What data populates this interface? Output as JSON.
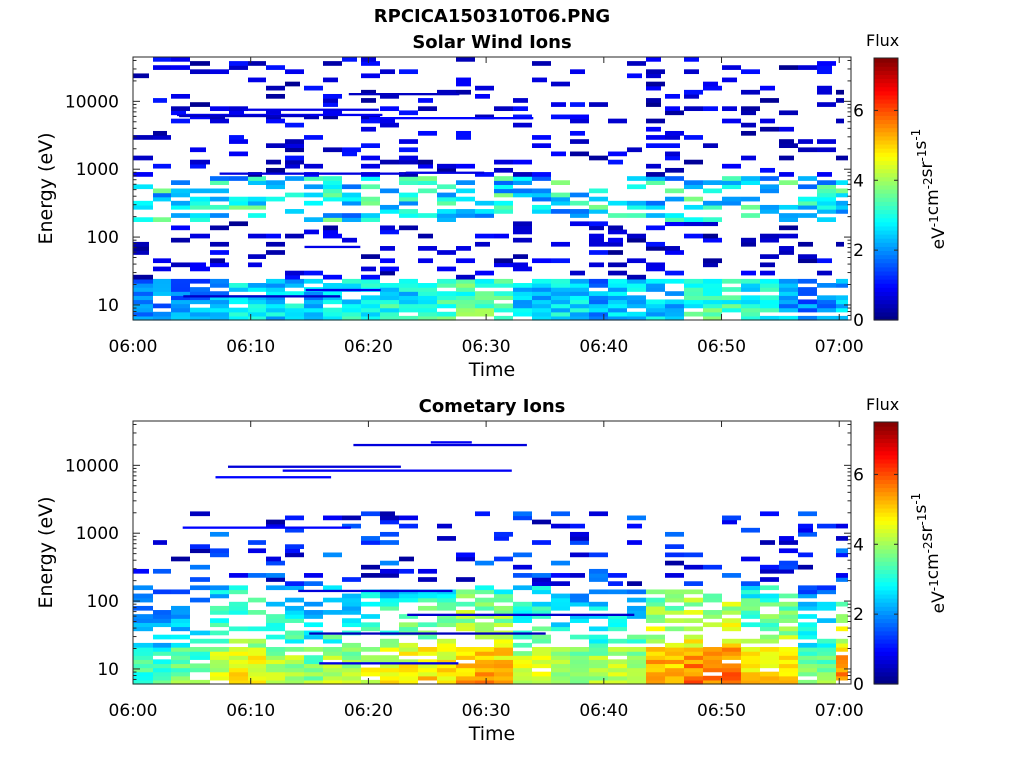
{
  "figure_title": "RPCICA150310T06.PNG",
  "colormap": "jet",
  "chart_data": [
    {
      "type": "heatmap",
      "title": "Solar Wind Ions",
      "xlabel": "Time",
      "ylabel": "Energy (eV)",
      "x_ticks": [
        "06:00",
        "06:10",
        "06:20",
        "06:30",
        "06:40",
        "06:50",
        "07:00"
      ],
      "x_range": [
        "06:00",
        "07:01"
      ],
      "y_scale": "log",
      "y_ticks": [
        "10",
        "100",
        "1000",
        "10000"
      ],
      "y_range": [
        6,
        45000
      ],
      "colorbar": {
        "label": "Flux",
        "units": "eV-1cm-2sr-1s-1",
        "range": [
          0,
          7.5
        ],
        "ticks": [
          "0",
          "2",
          "4",
          "6"
        ]
      },
      "low_energy_flux_approx": [
        2.0,
        2.0,
        2.3,
        2.9,
        2.6,
        2.4,
        2.8,
        3.0,
        2.8,
        3.3,
        3.5,
        3.4,
        2.6,
        2.7,
        2.2,
        2.6,
        2.5,
        3.1,
        3.3,
        3.1,
        2.2,
        2.0,
        2.3
      ]
    },
    {
      "type": "heatmap",
      "title": "Cometary Ions",
      "xlabel": "Time",
      "ylabel": "Energy (eV)",
      "x_ticks": [
        "06:00",
        "06:10",
        "06:20",
        "06:30",
        "06:40",
        "06:50",
        "07:00"
      ],
      "x_range": [
        "06:00",
        "07:01"
      ],
      "y_scale": "log",
      "y_ticks": [
        "10",
        "100",
        "1000",
        "10000"
      ],
      "y_range": [
        6,
        45000
      ],
      "colorbar": {
        "label": "Flux",
        "units": "eV-1cm-2sr-1s-1",
        "range": [
          0,
          7.5
        ],
        "ticks": [
          "0",
          "2",
          "4",
          "6"
        ]
      },
      "low_energy_flux_approx": [
        3.3,
        3.6,
        4.4,
        4.7,
        4.2,
        3.8,
        4.1,
        4.5,
        4.7,
        4.9,
        5.3,
        5.1,
        4.4,
        4.0,
        4.1,
        4.2,
        5.3,
        5.7,
        5.6,
        4.8,
        5.2,
        3.8,
        5.4
      ]
    }
  ]
}
